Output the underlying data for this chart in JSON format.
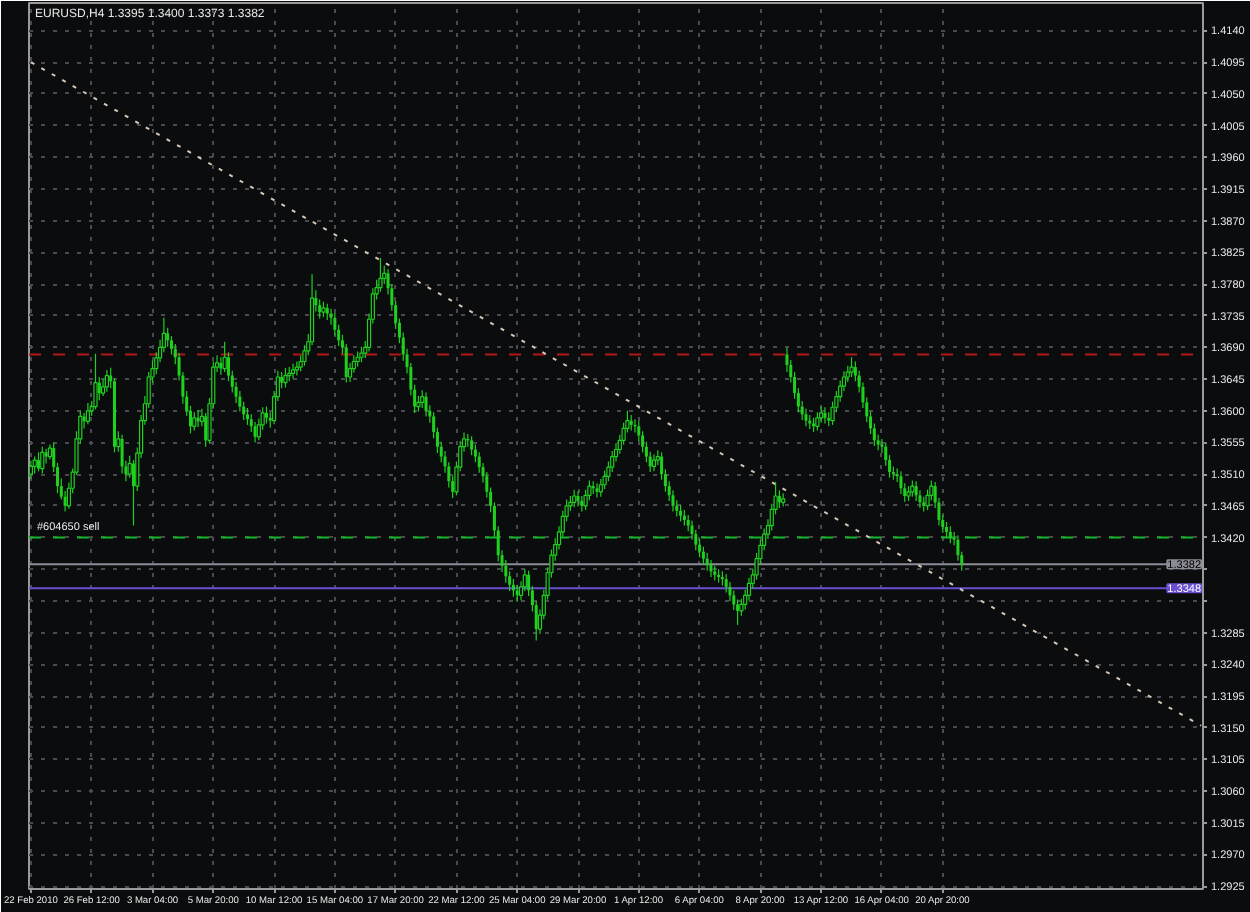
{
  "chart_data": {
    "type": "candlestick",
    "title": "EURUSD,H4 1.3395 1.3400 1.3373 1.3382",
    "categories": [
      "22 Feb 2010",
      null,
      null,
      null,
      null,
      null,
      null,
      null,
      null,
      null,
      null,
      null,
      null,
      null,
      null,
      null,
      "26 Feb 12:00",
      null,
      null,
      null,
      null,
      null,
      null,
      null,
      null,
      null,
      null,
      null,
      null,
      null,
      null,
      null,
      "3 Mar 04:00",
      null,
      null,
      null,
      null,
      null,
      null,
      null,
      null,
      null,
      null,
      null,
      null,
      null,
      null,
      null,
      "5 Mar 20:00",
      null,
      null,
      null,
      null,
      null,
      null,
      null,
      null,
      null,
      null,
      null,
      null,
      null,
      null,
      null,
      "10 Mar 12:00",
      null,
      null,
      null,
      null,
      null,
      null,
      null,
      null,
      null,
      null,
      null,
      null,
      null,
      null,
      null,
      "15 Mar 04:00",
      null,
      null,
      null,
      null,
      null,
      null,
      null,
      null,
      null,
      null,
      null,
      null,
      null,
      null,
      null,
      "17 Mar 20:00",
      null,
      null,
      null,
      null,
      null,
      null,
      null,
      null,
      null,
      null,
      null,
      null,
      null,
      null,
      null,
      "22 Mar 12:00",
      null,
      null,
      null,
      null,
      null,
      null,
      null,
      null,
      null,
      null,
      null,
      null,
      null,
      null,
      null,
      "25 Mar 04:00",
      null,
      null,
      null,
      null,
      null,
      null,
      null,
      null,
      null,
      null,
      null,
      null,
      null,
      null,
      null,
      "29 Mar 20:00",
      null,
      null,
      null,
      null,
      null,
      null,
      null,
      null,
      null,
      null,
      null,
      null,
      null,
      null,
      null,
      "1 Apr 12:00",
      null,
      null,
      null,
      null,
      null,
      null,
      null,
      null,
      null,
      null,
      null,
      null,
      null,
      null,
      null,
      "6 Apr 04:00",
      null,
      null,
      null,
      null,
      null,
      null,
      null,
      null,
      null,
      null,
      null,
      null,
      null,
      null,
      null,
      "8 Apr 20:00",
      null,
      null,
      null,
      null,
      null,
      null,
      null,
      null,
      null,
      null,
      null,
      null,
      null,
      null,
      null,
      "13 Apr 12:00",
      null,
      null,
      null,
      null,
      null,
      null,
      null,
      null,
      null,
      null,
      null,
      null,
      null,
      null,
      null,
      "16 Apr 04:00",
      null,
      null,
      null,
      null,
      null,
      null,
      null,
      null,
      null,
      null,
      null,
      null,
      null,
      null,
      null,
      "20 Apr 20:00",
      null,
      null,
      null,
      null,
      null,
      null,
      null,
      null,
      null,
      null,
      null,
      null,
      null,
      null,
      null,
      null,
      null,
      null,
      null,
      null,
      null,
      null,
      null,
      null,
      null,
      null,
      null,
      null,
      null,
      null,
      null,
      null,
      null,
      null,
      null,
      null,
      null,
      null,
      null,
      null,
      null,
      null,
      null,
      null,
      null,
      null,
      null,
      null,
      null,
      null,
      null,
      null,
      null,
      null,
      null,
      null,
      null,
      null,
      null,
      null,
      null,
      null,
      null,
      null,
      null,
      null,
      null,
      null
    ],
    "ylim": [
      1.2921,
      1.4179
    ],
    "yticks": [
      1.2925,
      {
        "value": 1.297,
        "label": "1.2970"
      },
      1.3015,
      {
        "value": 1.306,
        "label": "1.3060"
      },
      1.3105,
      {
        "value": 1.315,
        "label": "1.3150"
      },
      1.3195,
      {
        "value": 1.324,
        "label": "1.3240"
      },
      1.3285,
      {
        "value": 1.333,
        "label": null
      },
      {
        "value": 1.3375,
        "label": null
      },
      {
        "value": 1.342,
        "label": "1.3420"
      },
      1.3465,
      {
        "value": 1.351,
        "label": "1.3510"
      },
      1.3555,
      {
        "value": 1.36,
        "label": "1.3600"
      },
      1.3645,
      {
        "value": 1.369,
        "label": "1.3690"
      },
      1.3735,
      {
        "value": 1.378,
        "label": "1.3780"
      },
      1.3825,
      {
        "value": 1.387,
        "label": "1.3870"
      },
      1.3915,
      {
        "value": 1.396,
        "label": "1.3960"
      },
      1.4005,
      {
        "value": 1.405,
        "label": "1.4050"
      },
      1.4095,
      {
        "value": 1.414,
        "label": "1.4140"
      }
    ],
    "grid": true,
    "ref_lines": [
      {
        "axis": "y",
        "value": 1.368,
        "color": "#b01818",
        "line_style": "dashed"
      },
      {
        "axis": "y",
        "value": 1.342,
        "label": "#604650 sell",
        "color": "#12b82a",
        "line_style": "dashed"
      },
      {
        "axis": "y",
        "value": 1.3382,
        "label": "1.3382",
        "color": "#8c8c96",
        "line_style": "solid"
      },
      {
        "axis": "y",
        "value": 1.3348,
        "label": "1.3348",
        "color": "#6a4fd0",
        "line_style": "solid"
      }
    ],
    "series": [
      {
        "color": "#1fd01f",
        "ohlc": [
          [
            1.351,
            1.3529,
            1.3503,
            1.3521
          ],
          [
            1.3521,
            1.3535,
            1.3511,
            1.353
          ],
          [
            1.353,
            1.3541,
            1.3514,
            1.3518
          ],
          [
            1.3518,
            1.3549,
            1.3511,
            1.3541
          ],
          [
            1.3541,
            1.3546,
            1.3525,
            1.3535
          ],
          [
            1.3535,
            1.3552,
            1.3531,
            1.3547
          ],
          [
            1.3547,
            1.3555,
            1.3513,
            1.352
          ],
          [
            1.352,
            1.3526,
            1.3483,
            1.3493
          ],
          [
            1.3493,
            1.3504,
            1.3474,
            1.3478
          ],
          [
            1.3478,
            1.3486,
            1.3457,
            1.3465
          ],
          [
            1.3465,
            1.3498,
            1.3461,
            1.349
          ],
          [
            1.349,
            1.3518,
            1.3483,
            1.3513
          ],
          [
            1.3513,
            1.3571,
            1.3509,
            1.356
          ],
          [
            1.356,
            1.36,
            1.3553,
            1.3592
          ],
          [
            1.3592,
            1.3597,
            1.3575,
            1.3585
          ],
          [
            1.3585,
            1.3611,
            1.3581,
            1.36
          ],
          [
            1.36,
            1.3614,
            1.3593,
            1.3606
          ],
          [
            1.3606,
            1.3681,
            1.3602,
            1.364
          ],
          [
            1.364,
            1.3648,
            1.3615,
            1.3625
          ],
          [
            1.3625,
            1.3645,
            1.3621,
            1.3634
          ],
          [
            1.3634,
            1.3658,
            1.3627,
            1.365
          ],
          [
            1.365,
            1.3661,
            1.3632,
            1.3642
          ],
          [
            1.3642,
            1.3646,
            1.3541,
            1.3549
          ],
          [
            1.3549,
            1.3571,
            1.3542,
            1.356
          ],
          [
            1.356,
            1.3566,
            1.3511,
            1.3521
          ],
          [
            1.3521,
            1.3529,
            1.35,
            1.351
          ],
          [
            1.351,
            1.3536,
            1.3505,
            1.3525
          ],
          [
            1.3525,
            1.353,
            1.3437,
            1.3493
          ],
          [
            1.3493,
            1.3548,
            1.3486,
            1.354
          ],
          [
            1.354,
            1.3594,
            1.3533,
            1.3586
          ],
          [
            1.3586,
            1.3621,
            1.358,
            1.361
          ],
          [
            1.361,
            1.3655,
            1.3604,
            1.3648
          ],
          [
            1.3648,
            1.3671,
            1.364,
            1.366
          ],
          [
            1.366,
            1.3683,
            1.3652,
            1.3675
          ],
          [
            1.3675,
            1.3701,
            1.3669,
            1.369
          ],
          [
            1.369,
            1.3732,
            1.3683,
            1.371
          ],
          [
            1.371,
            1.3718,
            1.3691,
            1.37
          ],
          [
            1.37,
            1.3706,
            1.368,
            1.3688
          ],
          [
            1.3688,
            1.3695,
            1.3666,
            1.3676
          ],
          [
            1.3676,
            1.3682,
            1.3643,
            1.365
          ],
          [
            1.365,
            1.3655,
            1.361,
            1.362
          ],
          [
            1.362,
            1.3628,
            1.3593,
            1.36
          ],
          [
            1.36,
            1.3607,
            1.3568,
            1.3578
          ],
          [
            1.3578,
            1.3598,
            1.3572,
            1.359
          ],
          [
            1.359,
            1.3601,
            1.3577,
            1.3585
          ],
          [
            1.3585,
            1.3603,
            1.3578,
            1.3592
          ],
          [
            1.3592,
            1.3597,
            1.3549,
            1.3558
          ],
          [
            1.3558,
            1.3618,
            1.3554,
            1.361
          ],
          [
            1.361,
            1.367,
            1.3604,
            1.3662
          ],
          [
            1.3662,
            1.3679,
            1.3655,
            1.3668
          ],
          [
            1.3668,
            1.3676,
            1.3651,
            1.366
          ],
          [
            1.366,
            1.3698,
            1.3655,
            1.3676
          ],
          [
            1.3676,
            1.3683,
            1.3642,
            1.365
          ],
          [
            1.365,
            1.3657,
            1.3626,
            1.3634
          ],
          [
            1.3634,
            1.3641,
            1.3611,
            1.362
          ],
          [
            1.362,
            1.3628,
            1.3599,
            1.3606
          ],
          [
            1.3606,
            1.3613,
            1.3587,
            1.3595
          ],
          [
            1.3595,
            1.3604,
            1.358,
            1.3588
          ],
          [
            1.3588,
            1.3595,
            1.357,
            1.3578
          ],
          [
            1.3578,
            1.3584,
            1.3555,
            1.3563
          ],
          [
            1.3563,
            1.3589,
            1.3558,
            1.358
          ],
          [
            1.358,
            1.3605,
            1.3573,
            1.3597
          ],
          [
            1.3597,
            1.3606,
            1.3582,
            1.359
          ],
          [
            1.359,
            1.3598,
            1.3576,
            1.3586
          ],
          [
            1.3586,
            1.3628,
            1.3581,
            1.362
          ],
          [
            1.362,
            1.3657,
            1.3614,
            1.3648
          ],
          [
            1.3648,
            1.3655,
            1.3632,
            1.364
          ],
          [
            1.364,
            1.3661,
            1.3633,
            1.365
          ],
          [
            1.365,
            1.3662,
            1.3642,
            1.3653
          ],
          [
            1.3653,
            1.3667,
            1.3646,
            1.3658
          ],
          [
            1.3658,
            1.367,
            1.365,
            1.3662
          ],
          [
            1.3662,
            1.3678,
            1.3656,
            1.367
          ],
          [
            1.367,
            1.3693,
            1.3664,
            1.3685
          ],
          [
            1.3685,
            1.3709,
            1.3679,
            1.3698
          ],
          [
            1.3698,
            1.3794,
            1.3693,
            1.376
          ],
          [
            1.376,
            1.3771,
            1.3741,
            1.375
          ],
          [
            1.375,
            1.3758,
            1.3731,
            1.374
          ],
          [
            1.374,
            1.3755,
            1.3733,
            1.3746
          ],
          [
            1.3746,
            1.3752,
            1.3729,
            1.3738
          ],
          [
            1.3738,
            1.3745,
            1.3722,
            1.3732
          ],
          [
            1.3732,
            1.3739,
            1.3707,
            1.3715
          ],
          [
            1.3715,
            1.3722,
            1.3692,
            1.37
          ],
          [
            1.37,
            1.3708,
            1.3681,
            1.369
          ],
          [
            1.369,
            1.3695,
            1.364,
            1.3648
          ],
          [
            1.3648,
            1.3668,
            1.3641,
            1.366
          ],
          [
            1.366,
            1.3679,
            1.3654,
            1.367
          ],
          [
            1.367,
            1.3684,
            1.3663,
            1.3676
          ],
          [
            1.3676,
            1.3691,
            1.3669,
            1.3682
          ],
          [
            1.3682,
            1.3699,
            1.3675,
            1.369
          ],
          [
            1.369,
            1.3738,
            1.3684,
            1.373
          ],
          [
            1.373,
            1.3774,
            1.3724,
            1.3766
          ],
          [
            1.3766,
            1.3786,
            1.3758,
            1.3775
          ],
          [
            1.3775,
            1.3817,
            1.3769,
            1.3788
          ],
          [
            1.3788,
            1.3806,
            1.378,
            1.3795
          ],
          [
            1.3795,
            1.3801,
            1.3765,
            1.3774
          ],
          [
            1.3774,
            1.378,
            1.3742,
            1.375
          ],
          [
            1.375,
            1.3756,
            1.3716,
            1.3725
          ],
          [
            1.3725,
            1.3731,
            1.3696,
            1.3704
          ],
          [
            1.3704,
            1.3711,
            1.3671,
            1.368
          ],
          [
            1.368,
            1.3688,
            1.3653,
            1.3662
          ],
          [
            1.3662,
            1.3668,
            1.3622,
            1.363
          ],
          [
            1.363,
            1.3637,
            1.3597,
            1.3606
          ],
          [
            1.3606,
            1.3621,
            1.3599,
            1.3612
          ],
          [
            1.3612,
            1.3629,
            1.3604,
            1.362
          ],
          [
            1.362,
            1.3626,
            1.3592,
            1.36
          ],
          [
            1.36,
            1.3608,
            1.3583,
            1.3592
          ],
          [
            1.3592,
            1.3598,
            1.3561,
            1.357
          ],
          [
            1.357,
            1.3576,
            1.354,
            1.3549
          ],
          [
            1.3549,
            1.3556,
            1.3527,
            1.3535
          ],
          [
            1.3535,
            1.3543,
            1.3512,
            1.3521
          ],
          [
            1.3521,
            1.3527,
            1.3491,
            1.35
          ],
          [
            1.35,
            1.3507,
            1.3476,
            1.3485
          ],
          [
            1.3485,
            1.3528,
            1.348,
            1.352
          ],
          [
            1.352,
            1.3557,
            1.3514,
            1.3549
          ],
          [
            1.3549,
            1.3569,
            1.3542,
            1.356
          ],
          [
            1.356,
            1.3567,
            1.3549,
            1.3558
          ],
          [
            1.3558,
            1.3564,
            1.3537,
            1.3545
          ],
          [
            1.3545,
            1.3552,
            1.3527,
            1.3535
          ],
          [
            1.3535,
            1.3541,
            1.3512,
            1.352
          ],
          [
            1.352,
            1.3526,
            1.3498,
            1.3507
          ],
          [
            1.3507,
            1.3513,
            1.3477,
            1.3485
          ],
          [
            1.3485,
            1.3491,
            1.3456,
            1.3465
          ],
          [
            1.3465,
            1.347,
            1.3421,
            1.343
          ],
          [
            1.343,
            1.3436,
            1.3386,
            1.3395
          ],
          [
            1.3395,
            1.3402,
            1.3371,
            1.338
          ],
          [
            1.338,
            1.3388,
            1.3356,
            1.3365
          ],
          [
            1.3365,
            1.3372,
            1.3344,
            1.3353
          ],
          [
            1.3353,
            1.3361,
            1.3336,
            1.3345
          ],
          [
            1.3345,
            1.3353,
            1.3329,
            1.3338
          ],
          [
            1.3338,
            1.3358,
            1.3331,
            1.335
          ],
          [
            1.335,
            1.3375,
            1.3344,
            1.3367
          ],
          [
            1.3367,
            1.3373,
            1.3337,
            1.3345
          ],
          [
            1.3345,
            1.3351,
            1.3315,
            1.3324
          ],
          [
            1.3324,
            1.333,
            1.3274,
            1.329
          ],
          [
            1.329,
            1.3318,
            1.3283,
            1.331
          ],
          [
            1.331,
            1.3346,
            1.3304,
            1.3338
          ],
          [
            1.3338,
            1.3378,
            1.3332,
            1.337
          ],
          [
            1.337,
            1.3403,
            1.3363,
            1.3395
          ],
          [
            1.3395,
            1.3419,
            1.3387,
            1.341
          ],
          [
            1.341,
            1.3436,
            1.3403,
            1.3428
          ],
          [
            1.3428,
            1.3458,
            1.3421,
            1.345
          ],
          [
            1.345,
            1.3474,
            1.3443,
            1.3465
          ],
          [
            1.3465,
            1.3479,
            1.3458,
            1.347
          ],
          [
            1.347,
            1.3488,
            1.3463,
            1.3479
          ],
          [
            1.3479,
            1.3486,
            1.3464,
            1.3472
          ],
          [
            1.3472,
            1.3479,
            1.3457,
            1.3465
          ],
          [
            1.3465,
            1.3488,
            1.3459,
            1.348
          ],
          [
            1.348,
            1.3501,
            1.3473,
            1.3493
          ],
          [
            1.3493,
            1.35,
            1.3482,
            1.349
          ],
          [
            1.349,
            1.3497,
            1.3477,
            1.3485
          ],
          [
            1.3485,
            1.3503,
            1.3478,
            1.3495
          ],
          [
            1.3495,
            1.3515,
            1.3489,
            1.3507
          ],
          [
            1.3507,
            1.3528,
            1.35,
            1.352
          ],
          [
            1.352,
            1.3543,
            1.3513,
            1.3535
          ],
          [
            1.3535,
            1.3554,
            1.3528,
            1.3545
          ],
          [
            1.3545,
            1.3566,
            1.3539,
            1.3558
          ],
          [
            1.3558,
            1.3583,
            1.3552,
            1.3575
          ],
          [
            1.3575,
            1.36,
            1.3569,
            1.3586
          ],
          [
            1.3586,
            1.3594,
            1.3572,
            1.358
          ],
          [
            1.358,
            1.3588,
            1.3569,
            1.3578
          ],
          [
            1.3578,
            1.3585,
            1.3557,
            1.3565
          ],
          [
            1.3565,
            1.3571,
            1.3541,
            1.3549
          ],
          [
            1.3549,
            1.3556,
            1.3527,
            1.3535
          ],
          [
            1.3535,
            1.3542,
            1.3513,
            1.3521
          ],
          [
            1.3521,
            1.3538,
            1.3514,
            1.353
          ],
          [
            1.353,
            1.3544,
            1.3523,
            1.3535
          ],
          [
            1.3535,
            1.3541,
            1.3502,
            1.351
          ],
          [
            1.351,
            1.3517,
            1.3485,
            1.3493
          ],
          [
            1.3493,
            1.35,
            1.3472,
            1.348
          ],
          [
            1.348,
            1.3487,
            1.3457,
            1.3465
          ],
          [
            1.3465,
            1.3473,
            1.345,
            1.3458
          ],
          [
            1.3458,
            1.3466,
            1.3443,
            1.3451
          ],
          [
            1.3451,
            1.3459,
            1.3437,
            1.3445
          ],
          [
            1.3445,
            1.3452,
            1.3429,
            1.3437
          ],
          [
            1.3437,
            1.3444,
            1.3417,
            1.3425
          ],
          [
            1.3425,
            1.3431,
            1.3402,
            1.341
          ],
          [
            1.341,
            1.3418,
            1.3392,
            1.34
          ],
          [
            1.34,
            1.3407,
            1.3382,
            1.339
          ],
          [
            1.339,
            1.3398,
            1.3373,
            1.3381
          ],
          [
            1.3381,
            1.3388,
            1.3364,
            1.3372
          ],
          [
            1.3372,
            1.338,
            1.3359,
            1.3367
          ],
          [
            1.3367,
            1.3375,
            1.3356,
            1.3364
          ],
          [
            1.3364,
            1.3372,
            1.3352,
            1.3361
          ],
          [
            1.3361,
            1.3368,
            1.3342,
            1.335
          ],
          [
            1.335,
            1.3357,
            1.333,
            1.3338
          ],
          [
            1.3338,
            1.3345,
            1.3317,
            1.3325
          ],
          [
            1.3325,
            1.3332,
            1.3296,
            1.3316
          ],
          [
            1.3316,
            1.3333,
            1.3309,
            1.3325
          ],
          [
            1.3325,
            1.3346,
            1.3318,
            1.3338
          ],
          [
            1.3338,
            1.3363,
            1.3331,
            1.3355
          ],
          [
            1.3355,
            1.3375,
            1.3348,
            1.3367
          ],
          [
            1.3367,
            1.3398,
            1.336,
            1.339
          ],
          [
            1.339,
            1.3417,
            1.3383,
            1.3409
          ],
          [
            1.3409,
            1.3433,
            1.3402,
            1.3425
          ],
          [
            1.3425,
            1.3446,
            1.3418,
            1.3437
          ],
          [
            1.3437,
            1.3468,
            1.343,
            1.346
          ],
          [
            1.346,
            1.3499,
            1.3453,
            1.3479
          ],
          [
            1.3479,
            1.3487,
            1.3462,
            1.347
          ],
          [
            1.347,
            1.3483,
            1.3464,
            1.3475
          ],
          [
            1.368,
            1.369,
            1.3655,
            1.3665
          ],
          [
            1.3665,
            1.3672,
            1.364,
            1.3648
          ],
          [
            1.3648,
            1.3655,
            1.3617,
            1.3625
          ],
          [
            1.3625,
            1.3632,
            1.3598,
            1.3606
          ],
          [
            1.3606,
            1.3614,
            1.3587,
            1.3595
          ],
          [
            1.3595,
            1.3603,
            1.3578,
            1.3586
          ],
          [
            1.3586,
            1.3594,
            1.3574,
            1.3582
          ],
          [
            1.3582,
            1.359,
            1.357,
            1.3578
          ],
          [
            1.3578,
            1.3598,
            1.3572,
            1.359
          ],
          [
            1.359,
            1.3606,
            1.3583,
            1.3597
          ],
          [
            1.3597,
            1.3605,
            1.3582,
            1.359
          ],
          [
            1.359,
            1.3598,
            1.3578,
            1.3586
          ],
          [
            1.3586,
            1.3613,
            1.358,
            1.3605
          ],
          [
            1.3605,
            1.3628,
            1.3598,
            1.362
          ],
          [
            1.362,
            1.3643,
            1.3613,
            1.3635
          ],
          [
            1.3635,
            1.3656,
            1.3628,
            1.3648
          ],
          [
            1.3648,
            1.3664,
            1.3641,
            1.3655
          ],
          [
            1.3655,
            1.3676,
            1.3648,
            1.3662
          ],
          [
            1.3662,
            1.367,
            1.3642,
            1.365
          ],
          [
            1.365,
            1.3657,
            1.3626,
            1.3634
          ],
          [
            1.3634,
            1.364,
            1.3604,
            1.3612
          ],
          [
            1.3612,
            1.3619,
            1.3584,
            1.3592
          ],
          [
            1.3592,
            1.3599,
            1.3567,
            1.3575
          ],
          [
            1.3575,
            1.3582,
            1.355,
            1.3558
          ],
          [
            1.3558,
            1.3566,
            1.3544,
            1.3552
          ],
          [
            1.3552,
            1.356,
            1.354,
            1.3549
          ],
          [
            1.3549,
            1.3555,
            1.3522,
            1.353
          ],
          [
            1.353,
            1.3537,
            1.3505,
            1.3513
          ],
          [
            1.3513,
            1.3521,
            1.3502,
            1.351
          ],
          [
            1.351,
            1.3518,
            1.3499,
            1.3507
          ],
          [
            1.3507,
            1.3514,
            1.3482,
            1.349
          ],
          [
            1.349,
            1.3497,
            1.3471,
            1.3479
          ],
          [
            1.3479,
            1.3493,
            1.3472,
            1.3485
          ],
          [
            1.3485,
            1.3501,
            1.3478,
            1.3493
          ],
          [
            1.3493,
            1.35,
            1.3472,
            1.348
          ],
          [
            1.348,
            1.3487,
            1.3462,
            1.347
          ],
          [
            1.347,
            1.3478,
            1.3457,
            1.3465
          ],
          [
            1.3465,
            1.3488,
            1.3459,
            1.348
          ],
          [
            1.348,
            1.3501,
            1.3473,
            1.3493
          ],
          [
            1.3493,
            1.3499,
            1.3462,
            1.347
          ],
          [
            1.347,
            1.3476,
            1.3437,
            1.3445
          ],
          [
            1.3445,
            1.3452,
            1.3427,
            1.3435
          ],
          [
            1.3435,
            1.3442,
            1.342,
            1.3428
          ],
          [
            1.3428,
            1.3436,
            1.3412,
            1.342
          ],
          [
            1.342,
            1.3428,
            1.3409,
            1.3417
          ],
          [
            1.3417,
            1.3423,
            1.3387,
            1.3395
          ],
          [
            1.3395,
            1.34,
            1.3373,
            1.3382
          ],
          null,
          null,
          null,
          null,
          null,
          null,
          null,
          null,
          null,
          null,
          null,
          null,
          null,
          null,
          null,
          null,
          null,
          null,
          null,
          null,
          null,
          null,
          null,
          null,
          null,
          null,
          null,
          null,
          null,
          null,
          null,
          null,
          null,
          null,
          null,
          null,
          null,
          null,
          null,
          null,
          null,
          null,
          null,
          null,
          null,
          null,
          null,
          null,
          null,
          null,
          null,
          null,
          null,
          null,
          null,
          null,
          null,
          null,
          null,
          null,
          null,
          null,
          null
        ]
      },
      {
        "type": "line",
        "color": "#d6c8b8",
        "line_style": "dotted",
        "values": [
          1.4095,
          null,
          null,
          null,
          null,
          null,
          null,
          null,
          null,
          null,
          null,
          null,
          null,
          null,
          null,
          null,
          null,
          null,
          null,
          null,
          null,
          null,
          null,
          null,
          null,
          null,
          null,
          null,
          null,
          null,
          null,
          null,
          null,
          null,
          null,
          null,
          null,
          null,
          null,
          null,
          null,
          null,
          null,
          null,
          null,
          null,
          null,
          null,
          null,
          null,
          null,
          null,
          null,
          null,
          null,
          null,
          null,
          null,
          null,
          null,
          null,
          null,
          null,
          null,
          null,
          null,
          null,
          null,
          null,
          null,
          null,
          null,
          null,
          null,
          null,
          null,
          null,
          null,
          null,
          null,
          null,
          null,
          null,
          null,
          null,
          null,
          null,
          null,
          null,
          null,
          null,
          null,
          null,
          null,
          null,
          null,
          null,
          null,
          null,
          null,
          null,
          null,
          null,
          null,
          null,
          null,
          null,
          null,
          null,
          null,
          null,
          null,
          null,
          null,
          null,
          null,
          null,
          null,
          null,
          null,
          null,
          null,
          null,
          null,
          null,
          null,
          null,
          null,
          null,
          null,
          null,
          null,
          null,
          null,
          null,
          null,
          null,
          null,
          null,
          null,
          null,
          null,
          null,
          null,
          null,
          null,
          null,
          null,
          null,
          null,
          null,
          null,
          null,
          null,
          null,
          null,
          null,
          null,
          null,
          null,
          null,
          null,
          null,
          null,
          null,
          null,
          null,
          null,
          null,
          null,
          null,
          null,
          null,
          null,
          null,
          null,
          null,
          null,
          null,
          null,
          null,
          null,
          null,
          null,
          null,
          null,
          null,
          null,
          null,
          null,
          null,
          null,
          null,
          null,
          null,
          null,
          null,
          null,
          null,
          null,
          null,
          null,
          null,
          null,
          null,
          null,
          null,
          null,
          null,
          null,
          null,
          null,
          null,
          null,
          null,
          null,
          null,
          null,
          null,
          null,
          null,
          null,
          null,
          null,
          null,
          null,
          null,
          null,
          null,
          null,
          null,
          null,
          null,
          null,
          null,
          null,
          null,
          null,
          null,
          null,
          null,
          null,
          null,
          null,
          null,
          null,
          null,
          null,
          null,
          null,
          null,
          null,
          null,
          null,
          null,
          null,
          null,
          null,
          null,
          null,
          null,
          null,
          null,
          null,
          null,
          null,
          null,
          null,
          null,
          null,
          null,
          null,
          null,
          null,
          null,
          null,
          null,
          null,
          null,
          null,
          null,
          null,
          null,
          null,
          null,
          null,
          null,
          null,
          null,
          null,
          null,
          null,
          null,
          null,
          null,
          null,
          null,
          null,
          null,
          null,
          null,
          null,
          null,
          null,
          null,
          null,
          null,
          null,
          1.3153
        ]
      }
    ]
  }
}
